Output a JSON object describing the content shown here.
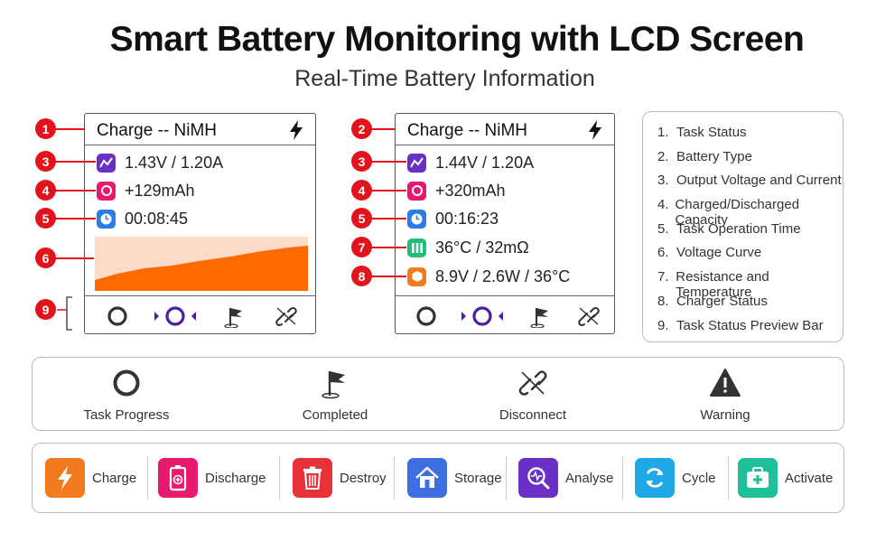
{
  "header": {
    "title": "Smart Battery Monitoring with LCD Screen",
    "subtitle": "Real-Time Battery Information"
  },
  "screen1": {
    "battery_type": "Charge -- NiMH",
    "voltage_current": "1.43V / 1.20A",
    "capacity": "+129mAh",
    "time": "00:08:45"
  },
  "screen2": {
    "battery_type": "Charge -- NiMH",
    "voltage_current": "1.44V / 1.20A",
    "capacity": "+320mAh",
    "time": "00:16:23",
    "resistance_temp": "36°C / 32mΩ",
    "charger_status": "8.9V / 2.6W / 36°C"
  },
  "badges": [
    "1",
    "2",
    "3",
    "4",
    "5",
    "6",
    "7",
    "8",
    "9"
  ],
  "legend": [
    {
      "n": "1.",
      "label": "Task Status"
    },
    {
      "n": "2.",
      "label": "Battery Type"
    },
    {
      "n": "3.",
      "label": "Output Voltage and Current"
    },
    {
      "n": "4.",
      "label": "Charged/Discharged Capacity"
    },
    {
      "n": "5.",
      "label": "Task Operation Time"
    },
    {
      "n": "6.",
      "label": "Voltage Curve"
    },
    {
      "n": "7.",
      "label": "Resistance and Temperature"
    },
    {
      "n": "8.",
      "label": "Charger Status"
    },
    {
      "n": "9.",
      "label": "Task Status Preview Bar"
    }
  ],
  "status_icons": [
    {
      "label": "Task Progress",
      "icon": "ring-icon"
    },
    {
      "label": "Completed",
      "icon": "flag-icon"
    },
    {
      "label": "Disconnect",
      "icon": "broken-link-icon"
    },
    {
      "label": "Warning",
      "icon": "warning-icon"
    }
  ],
  "modes": [
    {
      "label": "Charge",
      "icon": "bolt-icon",
      "color": "#f47a1f"
    },
    {
      "label": "Discharge",
      "icon": "battery-minus-icon",
      "color": "#e8196e"
    },
    {
      "label": "Destroy",
      "icon": "trash-icon",
      "color": "#e8323a"
    },
    {
      "label": "Storage",
      "icon": "house-icon",
      "color": "#3d6fe0"
    },
    {
      "label": "Analyse",
      "icon": "magnifier-wave-icon",
      "color": "#6a2fc4"
    },
    {
      "label": "Cycle",
      "icon": "cycle-arrows-icon",
      "color": "#1fa8e8"
    },
    {
      "label": "Activate",
      "icon": "first-aid-icon",
      "color": "#1fbf9a"
    }
  ],
  "colors": {
    "badge": "#e3131b",
    "curve_fill": "#ff6a00",
    "curve_background": "#fcdcc8",
    "voltage_icon": "#6a2fc4",
    "capacity_icon": "#e8196e",
    "time_icon": "#2b7be8",
    "resistance_icon": "#1fbf7a",
    "charger_icon": "#f47a1f"
  }
}
